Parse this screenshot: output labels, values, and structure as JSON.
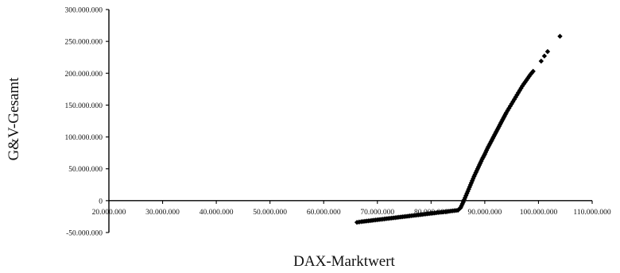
{
  "chart_data": {
    "type": "scatter",
    "xlabel": "DAX-Marktwert",
    "ylabel": "G&V-Gesamt",
    "xlim": [
      20000000,
      110000000
    ],
    "ylim": [
      -50000000,
      300000000
    ],
    "x_ticks": [
      20000000,
      30000000,
      40000000,
      50000000,
      60000000,
      70000000,
      80000000,
      90000000,
      100000000,
      110000000
    ],
    "x_tick_labels": [
      "20.000.000",
      "30.000.000",
      "40.000.000",
      "50.000.000",
      "60.000.000",
      "70.000.000",
      "80.000.000",
      "90.000.000",
      "100.000.000",
      "110.000.000"
    ],
    "y_ticks": [
      -50000000,
      0,
      50000000,
      100000000,
      150000000,
      200000000,
      250000000,
      300000000
    ],
    "y_tick_labels": [
      "-50.000.000",
      "0",
      "50.000.000",
      "100.000.000",
      "150.000.000",
      "200.000.000",
      "250.000.000",
      "300.000.000"
    ],
    "grid": false,
    "legend": "none",
    "marker": "diamond",
    "marker_color": "#000000",
    "series": [
      {
        "x": [
          66200000,
          67000000,
          68000000,
          69000000,
          70000000,
          71000000,
          72000000,
          73000000,
          74000000,
          75000000,
          76000000,
          77000000,
          78000000,
          79000000,
          80000000,
          81000000,
          82000000,
          83000000,
          84000000,
          85000000,
          85500000,
          86000000,
          86500000,
          87000000,
          87500000,
          88000000,
          88500000,
          89000000,
          89500000,
          90000000,
          90500000,
          91000000,
          91500000,
          92000000,
          92500000,
          93000000,
          93500000,
          94000000,
          94500000,
          95000000,
          95500000,
          96000000,
          96500000,
          97000000,
          97500000,
          98000000,
          98500000,
          99000000,
          100500000,
          101100000,
          101700000,
          104000000
        ],
        "y": [
          -34000000,
          -33000000,
          -32000000,
          -31000000,
          -30000000,
          -29000000,
          -28000000,
          -27000000,
          -26000000,
          -25000000,
          -24000000,
          -23000000,
          -22000000,
          -21000000,
          -20000000,
          -19000000,
          -18000000,
          -17000000,
          -16000000,
          -15000000,
          -11000000,
          -2000000,
          8000000,
          18000000,
          28000000,
          38000000,
          47000000,
          56000000,
          65000000,
          73000000,
          82000000,
          90000000,
          98000000,
          106000000,
          114000000,
          122000000,
          130000000,
          138000000,
          145000000,
          152000000,
          159000000,
          166000000,
          173000000,
          180000000,
          186000000,
          192000000,
          198000000,
          203000000,
          219000000,
          227000000,
          234000000,
          258000000
        ]
      }
    ]
  }
}
